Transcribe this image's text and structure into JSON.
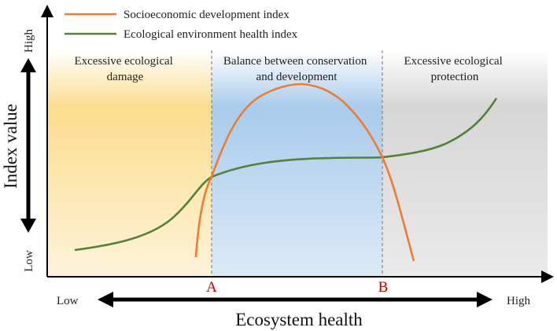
{
  "legend": [
    {
      "label": "Socioeconomic development index",
      "color": "#ED7D31"
    },
    {
      "label": "Ecological environment health index",
      "color": "#548235"
    }
  ],
  "zones": [
    {
      "label_lines": [
        "Excessive ecological",
        "damage"
      ],
      "color": "#F9D26B"
    },
    {
      "label_lines": [
        "Balance between conservation",
        "and development"
      ],
      "color": "#9DC3E6"
    },
    {
      "label_lines": [
        "Excessive ecological",
        "protection"
      ],
      "color": "#D0D0D0"
    }
  ],
  "y_axis": {
    "title": "Index value",
    "low": "Low",
    "high": "High"
  },
  "x_axis": {
    "title": "Ecosystem health",
    "low": "Low",
    "high": "High"
  },
  "points": {
    "a": "A",
    "b": "B"
  },
  "colors": {
    "socio": "#ED7D31",
    "eco": "#548235",
    "point": "#C00000",
    "divider": "#888888"
  }
}
